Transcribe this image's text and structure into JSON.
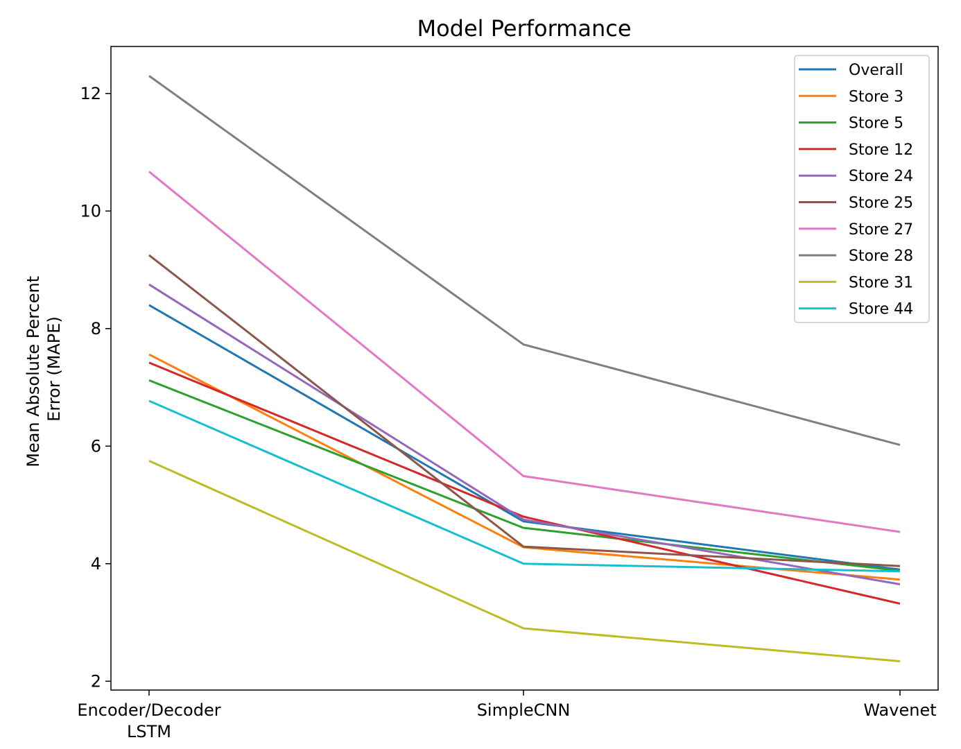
{
  "chart_data": {
    "type": "line",
    "title": "Model Performance",
    "xlabel": "",
    "ylabel_lines": [
      "Mean Absolute Percent",
      "Error (MAPE)"
    ],
    "categories": [
      [
        "Encoder/Decoder",
        "LSTM"
      ],
      [
        "SimpleCNN"
      ],
      [
        "Wavenet"
      ]
    ],
    "ylim": [
      1.85,
      12.8
    ],
    "yticks": [
      2,
      4,
      6,
      8,
      10,
      12
    ],
    "grid": false,
    "legend_position": "upper right",
    "series": [
      {
        "name": "Overall",
        "color": "#1f77b4",
        "values": [
          8.4,
          4.72,
          3.9
        ]
      },
      {
        "name": "Store 3",
        "color": "#ff7f0e",
        "values": [
          7.56,
          4.28,
          3.73
        ]
      },
      {
        "name": "Store 5",
        "color": "#2ca02c",
        "values": [
          7.12,
          4.61,
          3.88
        ]
      },
      {
        "name": "Store 12",
        "color": "#d62728",
        "values": [
          7.42,
          4.8,
          3.32
        ]
      },
      {
        "name": "Store 24",
        "color": "#9467bd",
        "values": [
          8.75,
          4.75,
          3.65
        ]
      },
      {
        "name": "Store 25",
        "color": "#8c564b",
        "values": [
          9.25,
          4.29,
          3.96
        ]
      },
      {
        "name": "Store 27",
        "color": "#e377c2",
        "values": [
          10.67,
          5.49,
          4.54
        ]
      },
      {
        "name": "Store 28",
        "color": "#7f7f7f",
        "values": [
          12.3,
          7.73,
          6.02
        ]
      },
      {
        "name": "Store 31",
        "color": "#bcbd22",
        "values": [
          5.75,
          2.9,
          2.34
        ]
      },
      {
        "name": "Store 44",
        "color": "#17becf",
        "values": [
          6.77,
          4.0,
          3.87
        ]
      }
    ]
  }
}
